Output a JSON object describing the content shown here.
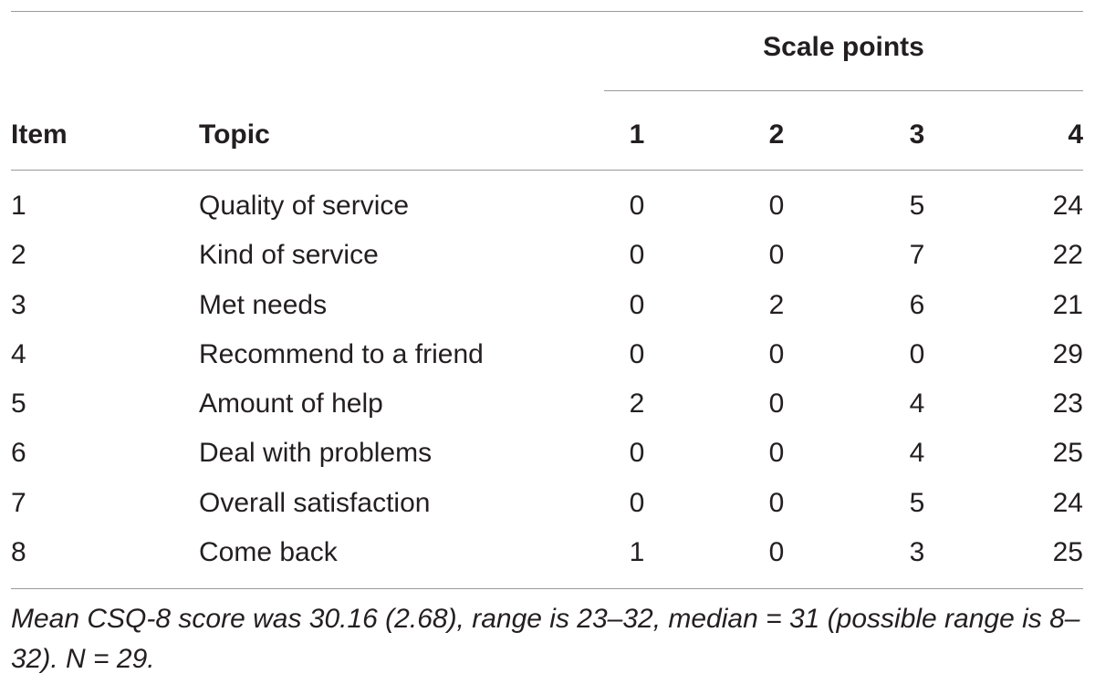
{
  "table": {
    "spanner_label": "Scale points",
    "headers": {
      "item": "Item",
      "topic": "Topic",
      "s1": "1",
      "s2": "2",
      "s3": "3",
      "s4": "4"
    },
    "rows": [
      {
        "item": "1",
        "topic": "Quality of service",
        "s1": "0",
        "s2": "0",
        "s3": "5",
        "s4": "24"
      },
      {
        "item": "2",
        "topic": "Kind of service",
        "s1": "0",
        "s2": "0",
        "s3": "7",
        "s4": "22"
      },
      {
        "item": "3",
        "topic": "Met needs",
        "s1": "0",
        "s2": "2",
        "s3": "6",
        "s4": "21"
      },
      {
        "item": "4",
        "topic": "Recommend to a friend",
        "s1": "0",
        "s2": "0",
        "s3": "0",
        "s4": "29"
      },
      {
        "item": "5",
        "topic": "Amount of help",
        "s1": "2",
        "s2": "0",
        "s3": "4",
        "s4": "23"
      },
      {
        "item": "6",
        "topic": "Deal with problems",
        "s1": "0",
        "s2": "0",
        "s3": "4",
        "s4": "25"
      },
      {
        "item": "7",
        "topic": "Overall satisfaction",
        "s1": "0",
        "s2": "0",
        "s3": "5",
        "s4": "24"
      },
      {
        "item": "8",
        "topic": "Come back",
        "s1": "1",
        "s2": "0",
        "s3": "3",
        "s4": "25"
      }
    ],
    "footnote": "Mean CSQ-8 score was 30.16 (2.68), range is 23–32, median = 31 (possible range is 8–32). N = 29."
  }
}
